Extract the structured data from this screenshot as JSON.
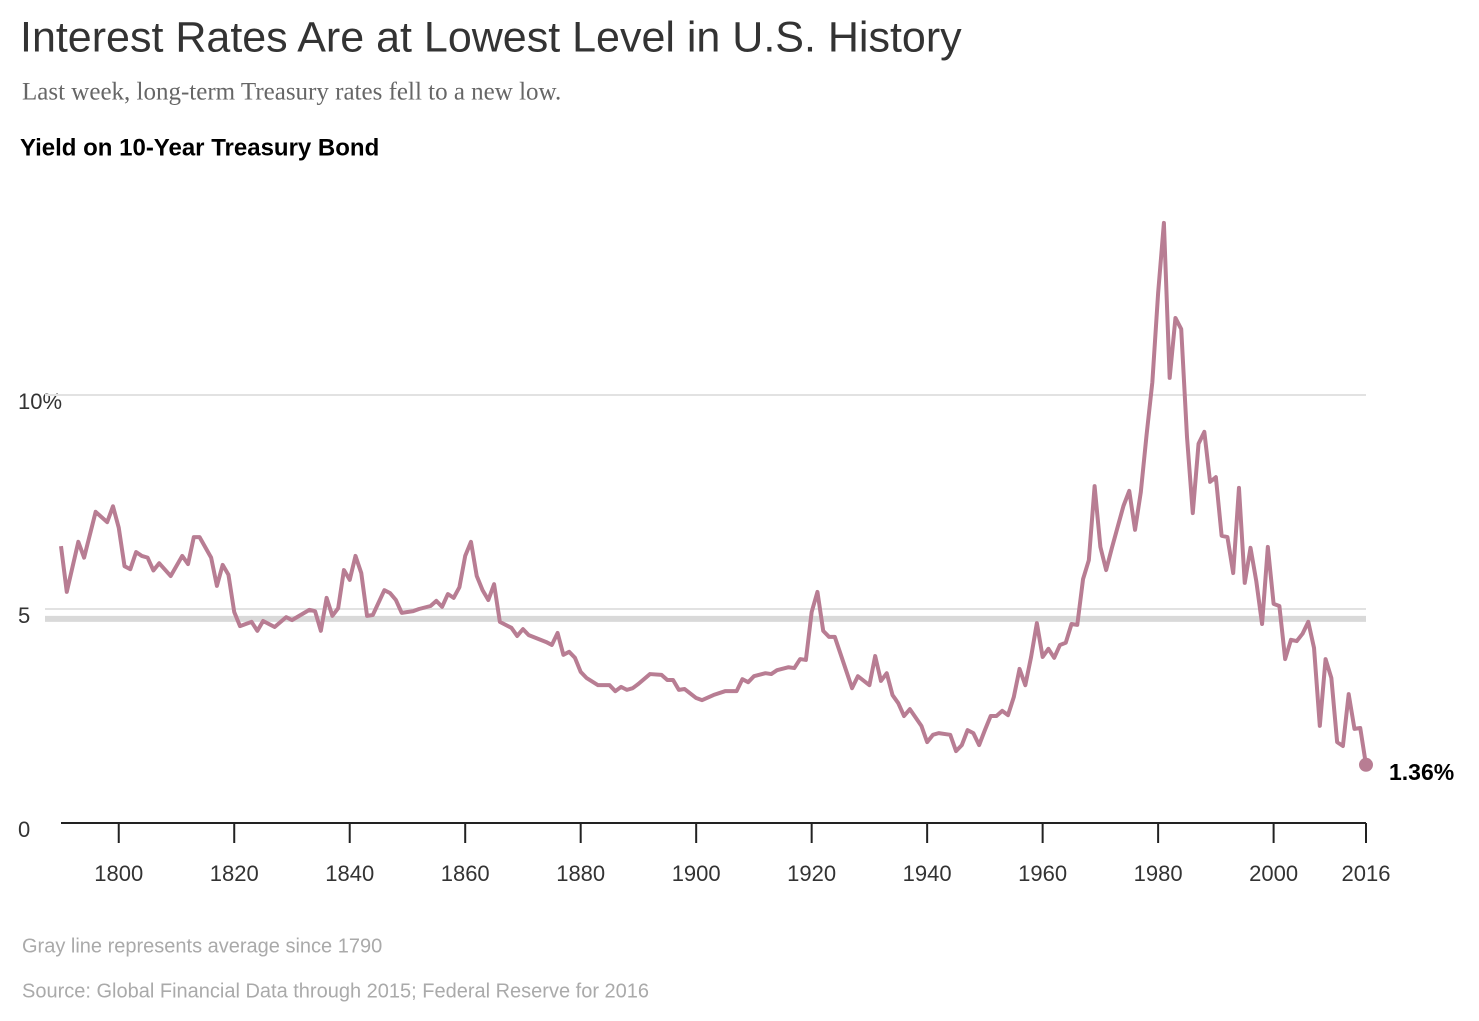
{
  "chart_data": {
    "type": "line",
    "title": "Interest Rates Are at Lowest Level in U.S. History",
    "subtitle": "Last week, long-term Treasury rates fell to a new low.",
    "chart_label": "Yield on 10-Year Treasury Bond",
    "note": "Gray line represents average since 1790",
    "source": "Source: Global Financial Data through 2015; Federal Reserve for 2016",
    "color": "#b87d93",
    "average": 4.77,
    "average_color": "#d9d9d9",
    "end_label": "1.36%",
    "grid": true,
    "xlim": [
      1790,
      2016
    ],
    "xticks": [
      1800,
      1820,
      1840,
      1860,
      1880,
      1900,
      1920,
      1940,
      1960,
      1980,
      2000,
      2016
    ],
    "ylim": [
      0,
      15
    ],
    "yticks": [
      0,
      5,
      {
        "value": 10,
        "label": "10%"
      }
    ],
    "x": [
      1790,
      1791,
      1793,
      1794,
      1796,
      1798,
      1799,
      1800,
      1801,
      1802,
      1803,
      1804,
      1805,
      1806,
      1807,
      1809,
      1811,
      1812,
      1813,
      1814,
      1816,
      1817,
      1818,
      1819,
      1820,
      1821,
      1823,
      1824,
      1825,
      1827,
      1829,
      1830,
      1833,
      1834,
      1835,
      1836,
      1837,
      1838,
      1839,
      1840,
      1841,
      1842,
      1843,
      1844,
      1846,
      1847,
      1848,
      1849,
      1851,
      1852,
      1854,
      1855,
      1856,
      1857,
      1858,
      1859,
      1860,
      1861,
      1862,
      1863,
      1864,
      1865,
      1866,
      1868,
      1869,
      1870,
      1871,
      1874,
      1875,
      1876,
      1877,
      1878,
      1879,
      1880,
      1881,
      1883,
      1885,
      1886,
      1887,
      1888,
      1889,
      1890,
      1892,
      1894,
      1895,
      1896,
      1897,
      1898,
      1900,
      1901,
      1903,
      1905,
      1907,
      1908,
      1909,
      1910,
      1912,
      1913,
      1914,
      1916,
      1917,
      1918,
      1919,
      1920,
      1921,
      1922,
      1923,
      1924,
      1925,
      1927,
      1928,
      1930,
      1931,
      1932,
      1933,
      1934,
      1935,
      1936,
      1937,
      1939,
      1940,
      1941,
      1942,
      1944,
      1945,
      1946,
      1947,
      1948,
      1949,
      1950,
      1951,
      1952,
      1953,
      1954,
      1955,
      1956,
      1957,
      1958,
      1959,
      1960,
      1961,
      1962,
      1963,
      1964,
      1965,
      1966,
      1967,
      1968,
      1969,
      1970,
      1971,
      1972,
      1973,
      1974,
      1975,
      1976,
      1977,
      1978,
      1979,
      1980,
      1981,
      1982,
      1983,
      1984,
      1985,
      1986,
      1987,
      1988,
      1989,
      1990,
      1991,
      1992,
      1993,
      1994,
      1995,
      1996,
      1997,
      1998,
      1999,
      2000,
      2001,
      2002,
      2003,
      2004,
      2005,
      2006,
      2007,
      2008,
      2009,
      2010,
      2011,
      2012,
      2013,
      2014,
      2015,
      2016
    ],
    "values": [
      6.47,
      5.4,
      6.57,
      6.2,
      7.27,
      7.03,
      7.4,
      6.9,
      6.0,
      5.93,
      6.33,
      6.24,
      6.2,
      5.9,
      6.07,
      5.77,
      6.24,
      6.05,
      6.68,
      6.68,
      6.2,
      5.54,
      6.03,
      5.8,
      4.93,
      4.6,
      4.7,
      4.49,
      4.72,
      4.58,
      4.81,
      4.74,
      4.98,
      4.95,
      4.49,
      5.26,
      4.84,
      5.02,
      5.91,
      5.68,
      6.24,
      5.84,
      4.84,
      4.86,
      5.44,
      5.37,
      5.21,
      4.91,
      4.95,
      5.0,
      5.07,
      5.19,
      5.05,
      5.35,
      5.26,
      5.51,
      6.24,
      6.57,
      5.77,
      5.44,
      5.21,
      5.58,
      4.7,
      4.56,
      4.37,
      4.53,
      4.39,
      4.23,
      4.16,
      4.44,
      3.93,
      4.0,
      3.86,
      3.53,
      3.39,
      3.22,
      3.22,
      3.08,
      3.18,
      3.11,
      3.15,
      3.25,
      3.48,
      3.46,
      3.34,
      3.34,
      3.11,
      3.13,
      2.92,
      2.87,
      2.99,
      3.08,
      3.08,
      3.36,
      3.29,
      3.43,
      3.5,
      3.48,
      3.57,
      3.64,
      3.62,
      3.83,
      3.81,
      4.93,
      5.4,
      4.49,
      4.35,
      4.35,
      3.95,
      3.15,
      3.43,
      3.22,
      3.9,
      3.32,
      3.5,
      2.99,
      2.8,
      2.5,
      2.66,
      2.27,
      1.89,
      2.06,
      2.1,
      2.06,
      1.68,
      1.82,
      2.17,
      2.1,
      1.82,
      2.17,
      2.5,
      2.5,
      2.62,
      2.52,
      2.94,
      3.6,
      3.22,
      3.88,
      4.67,
      3.88,
      4.07,
      3.86,
      4.16,
      4.21,
      4.65,
      4.63,
      5.7,
      6.14,
      7.87,
      6.45,
      5.91,
      6.43,
      6.92,
      7.41,
      7.76,
      6.85,
      7.73,
      9.07,
      10.3,
      12.38,
      14.02,
      10.4,
      11.8,
      11.54,
      9.02,
      7.24,
      8.86,
      9.14,
      7.97,
      8.08,
      6.71,
      6.68,
      5.84,
      7.83,
      5.61,
      6.43,
      5.65,
      4.65,
      6.45,
      5.12,
      5.07,
      3.83,
      4.28,
      4.25,
      4.42,
      4.7,
      4.09,
      2.27,
      3.83,
      3.39,
      1.89,
      1.8,
      3.01,
      2.2,
      2.22,
      1.36
    ]
  }
}
